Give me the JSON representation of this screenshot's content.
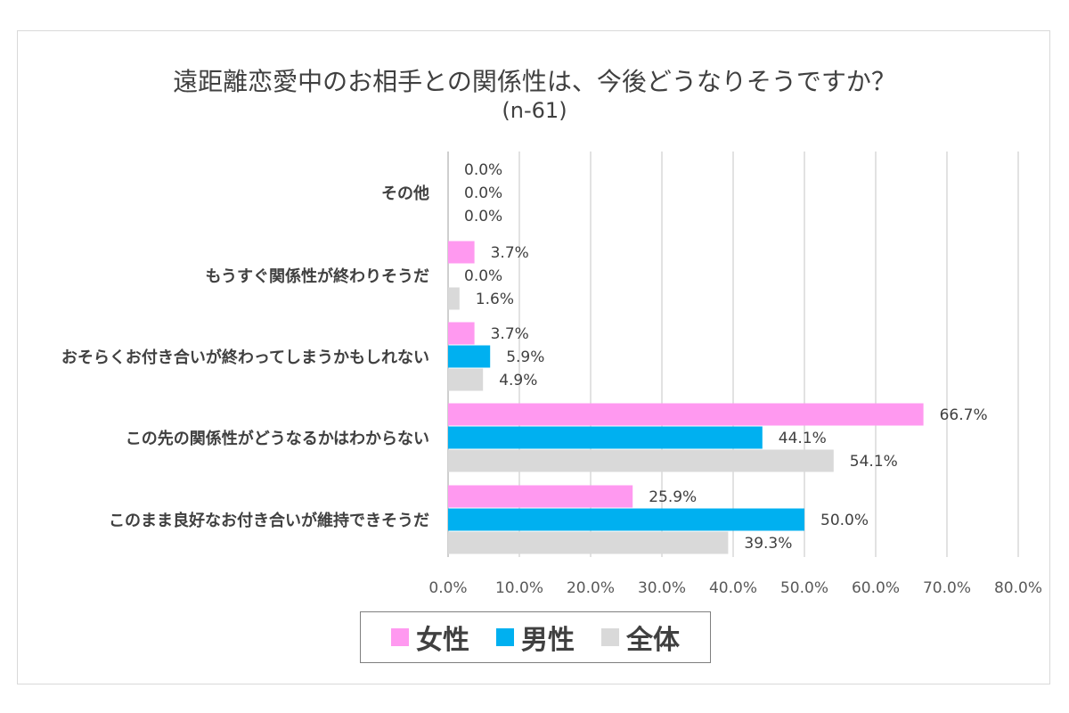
{
  "title": "遠距離恋愛中のお相手との関係性は、今後どうなりそうですか？",
  "subtitle": "(n-61)",
  "chart_data": {
    "type": "bar",
    "orientation": "horizontal",
    "categories": [
      "その他",
      "もうすぐ関係性が終わりそうだ",
      "おそらくお付き合いが終わってしまうかもしれない",
      "この先の関係性がどうなるかはわからない",
      "このまま良好なお付き合いが維持できそうだ"
    ],
    "series": [
      {
        "name": "女性",
        "color": "#ff99f0",
        "values": [
          0.0,
          3.7,
          3.7,
          66.7,
          25.9
        ],
        "labels": [
          "0.0%",
          "3.7%",
          "3.7%",
          "66.7%",
          "25.9%"
        ]
      },
      {
        "name": "男性",
        "color": "#00b0f0",
        "values": [
          0.0,
          0.0,
          5.9,
          44.1,
          50.0
        ],
        "labels": [
          "0.0%",
          "0.0%",
          "5.9%",
          "44.1%",
          "50.0%"
        ]
      },
      {
        "name": "全体",
        "color": "#d9d9d9",
        "values": [
          0.0,
          1.6,
          4.9,
          54.1,
          39.3
        ],
        "labels": [
          "0.0%",
          "1.6%",
          "4.9%",
          "54.1%",
          "39.3%"
        ]
      }
    ],
    "xlim": [
      0,
      80
    ],
    "xticks": [
      "0.0%",
      "10.0%",
      "20.0%",
      "30.0%",
      "40.0%",
      "50.0%",
      "60.0%",
      "70.0%",
      "80.0%"
    ],
    "grid": true,
    "legend_position": "bottom"
  }
}
